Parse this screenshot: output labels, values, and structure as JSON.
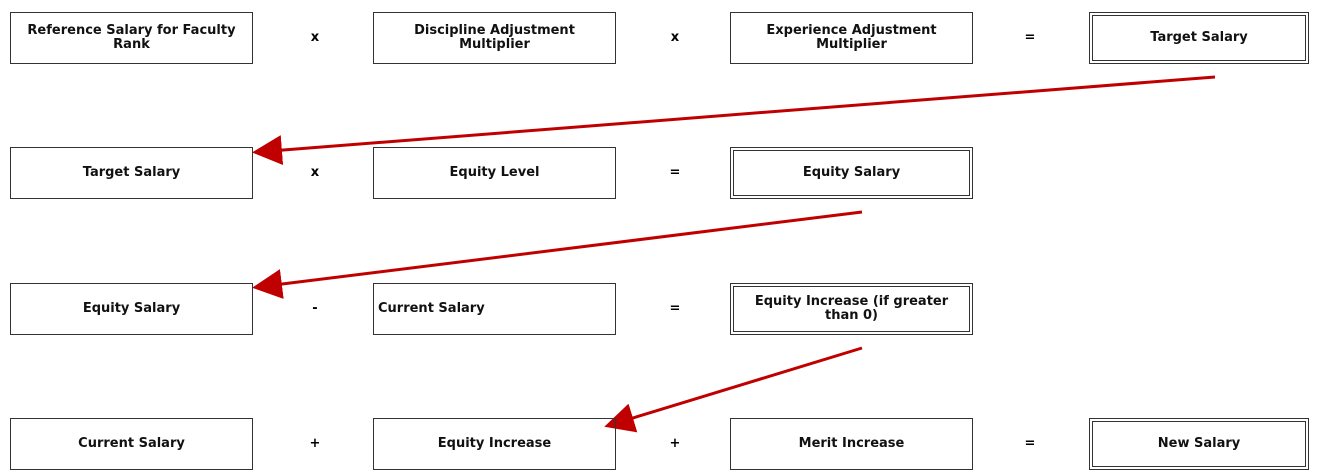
{
  "rows": [
    {
      "items": [
        "Reference Salary for Faculty Rank",
        "x",
        "Discipline Adjustment Multiplier",
        "x",
        "Experience Adjustment Multiplier",
        "=",
        "Target Salary"
      ]
    },
    {
      "items": [
        "Target Salary",
        "x",
        "Equity Level",
        "=",
        "Equity Salary"
      ]
    },
    {
      "items": [
        "Equity Salary",
        "-",
        "Current Salary",
        "=",
        "Equity Increase (if greater than 0)"
      ]
    },
    {
      "items": [
        "Current Salary",
        "+",
        "Equity Increase",
        "+",
        "Merit Increase",
        "=",
        "New Salary"
      ]
    }
  ]
}
